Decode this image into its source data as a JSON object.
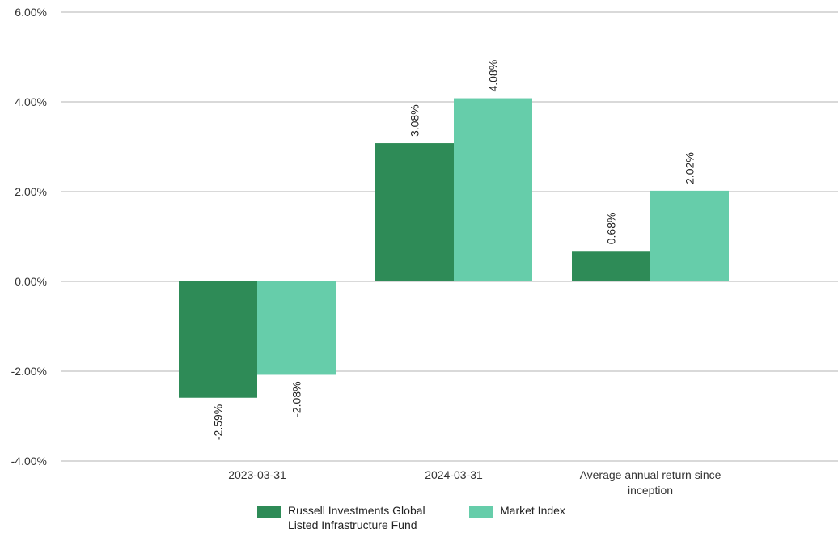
{
  "chart_data": {
    "type": "bar",
    "categories": [
      "2023-03-31",
      "2024-03-31",
      "Average annual return since inception"
    ],
    "series": [
      {
        "name": "Russell Investments Global Listed Infrastructure Fund",
        "values": [
          -2.59,
          3.08,
          0.68
        ],
        "labels": [
          "-2.59%",
          "3.08%",
          "0.68%"
        ],
        "color": "#2e8b57"
      },
      {
        "name": "Market Index",
        "values": [
          -2.08,
          4.08,
          2.02
        ],
        "labels": [
          "-2.08%",
          "4.08%",
          "2.02%"
        ],
        "color": "#66cdaa"
      }
    ],
    "ylim": [
      -4,
      6
    ],
    "yticks": [
      6,
      4,
      2,
      0,
      -2,
      -4
    ],
    "ytick_labels": [
      "6.00%",
      "4.00%",
      "2.00%",
      "0.00%",
      "-2.00%",
      "-4.00%"
    ],
    "title": "",
    "xlabel": "",
    "ylabel": "",
    "grid": true,
    "legend_position": "bottom"
  }
}
